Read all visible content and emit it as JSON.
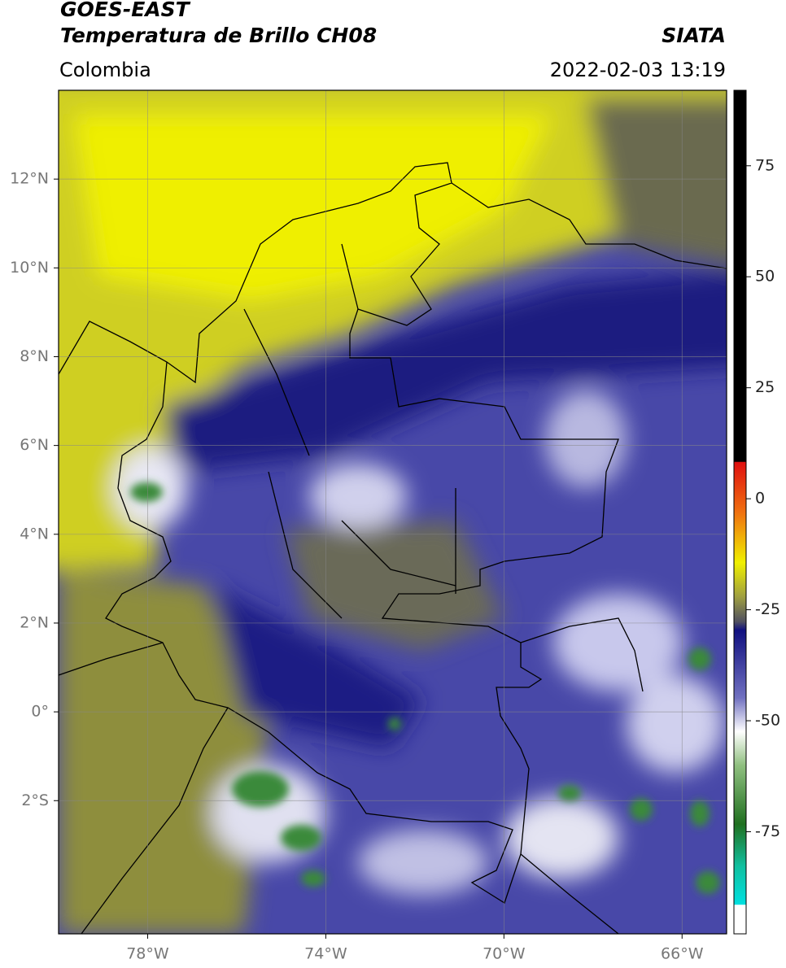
{
  "header": {
    "title": "GOES-EAST",
    "subtitle": "Temperatura de Brillo CH08",
    "source": "SIATA",
    "region": "Colombia",
    "datetime": "2022-02-03 13:19"
  },
  "map": {
    "xlim": [
      -80,
      -65
    ],
    "ylim": [
      -5,
      14
    ],
    "xticks": [
      {
        "value": -78,
        "label": "78°W"
      },
      {
        "value": -74,
        "label": "74°W"
      },
      {
        "value": -70,
        "label": "70°W"
      },
      {
        "value": -66,
        "label": "66°W"
      }
    ],
    "yticks": [
      {
        "value": 12,
        "label": "12°N"
      },
      {
        "value": 10,
        "label": "10°N"
      },
      {
        "value": 8,
        "label": "8°N"
      },
      {
        "value": 6,
        "label": "6°N"
      },
      {
        "value": 4,
        "label": "4°N"
      },
      {
        "value": 2,
        "label": "2°N"
      },
      {
        "value": 0,
        "label": "0°"
      },
      {
        "value": -2,
        "label": "2°S"
      }
    ],
    "grid": true
  },
  "colorbar": {
    "lim": [
      -98,
      92
    ],
    "ticks": [
      75,
      50,
      25,
      0,
      -25,
      -50,
      -75
    ]
  }
}
